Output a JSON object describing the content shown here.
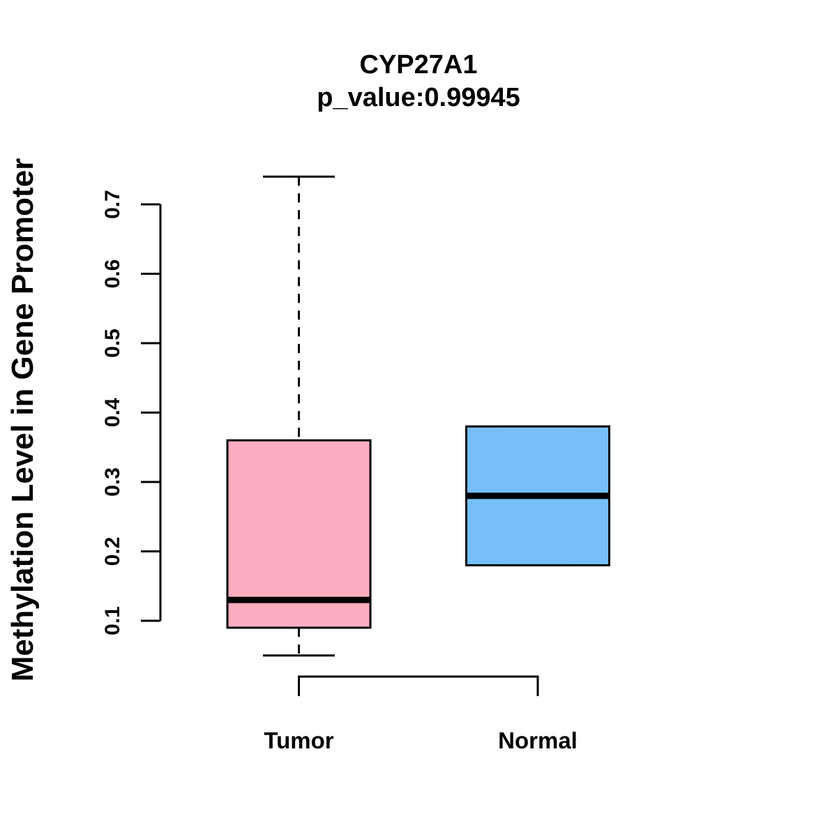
{
  "page": {
    "background_color": "#FFFFFF",
    "text_color": "#000000"
  },
  "chart_data": {
    "type": "boxplot",
    "title": "CYP27A1",
    "subtitle": "p_value:0.99945",
    "ylabel": "Methylation Level in Gene Promoter",
    "xlabel": "",
    "categories": [
      "Tumor",
      "Normal"
    ],
    "yticks": [
      0.1,
      0.2,
      0.3,
      0.4,
      0.5,
      0.6,
      0.7
    ],
    "ytick_labels": [
      "0.1",
      "0.2",
      "0.3",
      "0.4",
      "0.5",
      "0.6",
      "0.7"
    ],
    "ylim": [
      0.05,
      0.74
    ],
    "grid": false,
    "legend": false,
    "whisker_style": "dashed",
    "stroke_color": "#000000",
    "series": [
      {
        "name": "Tumor",
        "color": "#FCADC1",
        "whisker_low": 0.05,
        "q1": 0.09,
        "median": 0.13,
        "q3": 0.36,
        "whisker_high": 0.74
      },
      {
        "name": "Normal",
        "color": "#76BFF8",
        "whisker_low": 0.18,
        "q1": 0.18,
        "median": 0.28,
        "q3": 0.38,
        "whisker_high": 0.38
      }
    ],
    "comparison_bracket": {
      "between": [
        "Tumor",
        "Normal"
      ]
    }
  }
}
